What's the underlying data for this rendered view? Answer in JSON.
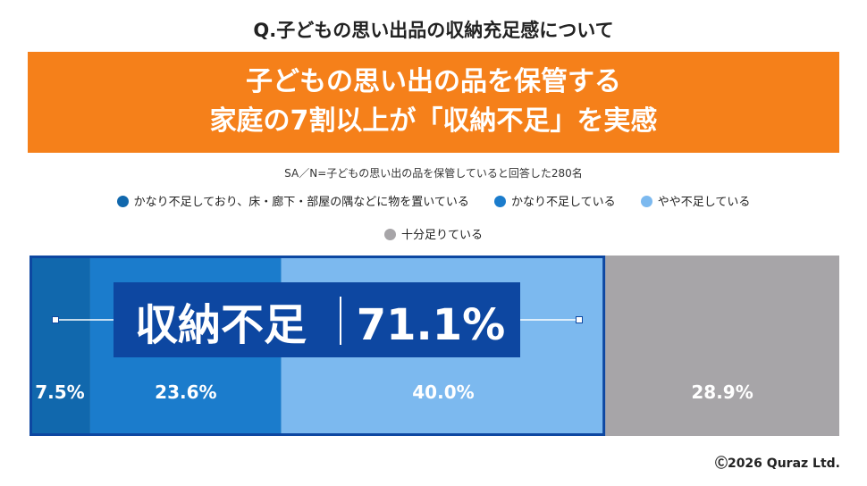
{
  "question": "Q.子どもの思い出品の収納充足感について",
  "banner": {
    "line1": "子どもの思い出の品を保管する",
    "line2": "家庭の7割以上が「収納不足」を実感"
  },
  "note": "SA／N=子どもの思い出の品を保管していると回答した280名",
  "colors": {
    "series1": "#1168ad",
    "series2": "#1b7ccc",
    "series3": "#7cb9ef",
    "series4": "#a7a5a8",
    "banner": "#f5801a",
    "highlight_box": "#0d47a1"
  },
  "chart_data": {
    "type": "bar",
    "orientation": "horizontal",
    "stacked": true,
    "categories": [
      ""
    ],
    "unit": "%",
    "series": [
      {
        "name": "かなり不足しており、床・廊下・部屋の隅などに物を置いている",
        "values": [
          7.5
        ],
        "label": "7.5%"
      },
      {
        "name": "かなり不足している",
        "values": [
          23.6
        ],
        "label": "23.6%"
      },
      {
        "name": "やや不足している",
        "values": [
          40.0
        ],
        "label": "40.0%"
      },
      {
        "name": "十分足りている",
        "values": [
          28.9
        ],
        "label": "28.9%"
      }
    ],
    "highlight": {
      "label": "収納不足",
      "value": "71.1%",
      "covers_series": [
        0,
        1,
        2
      ]
    },
    "legend_position": "top"
  },
  "copyright": "Ⓒ2026 Quraz Ltd."
}
